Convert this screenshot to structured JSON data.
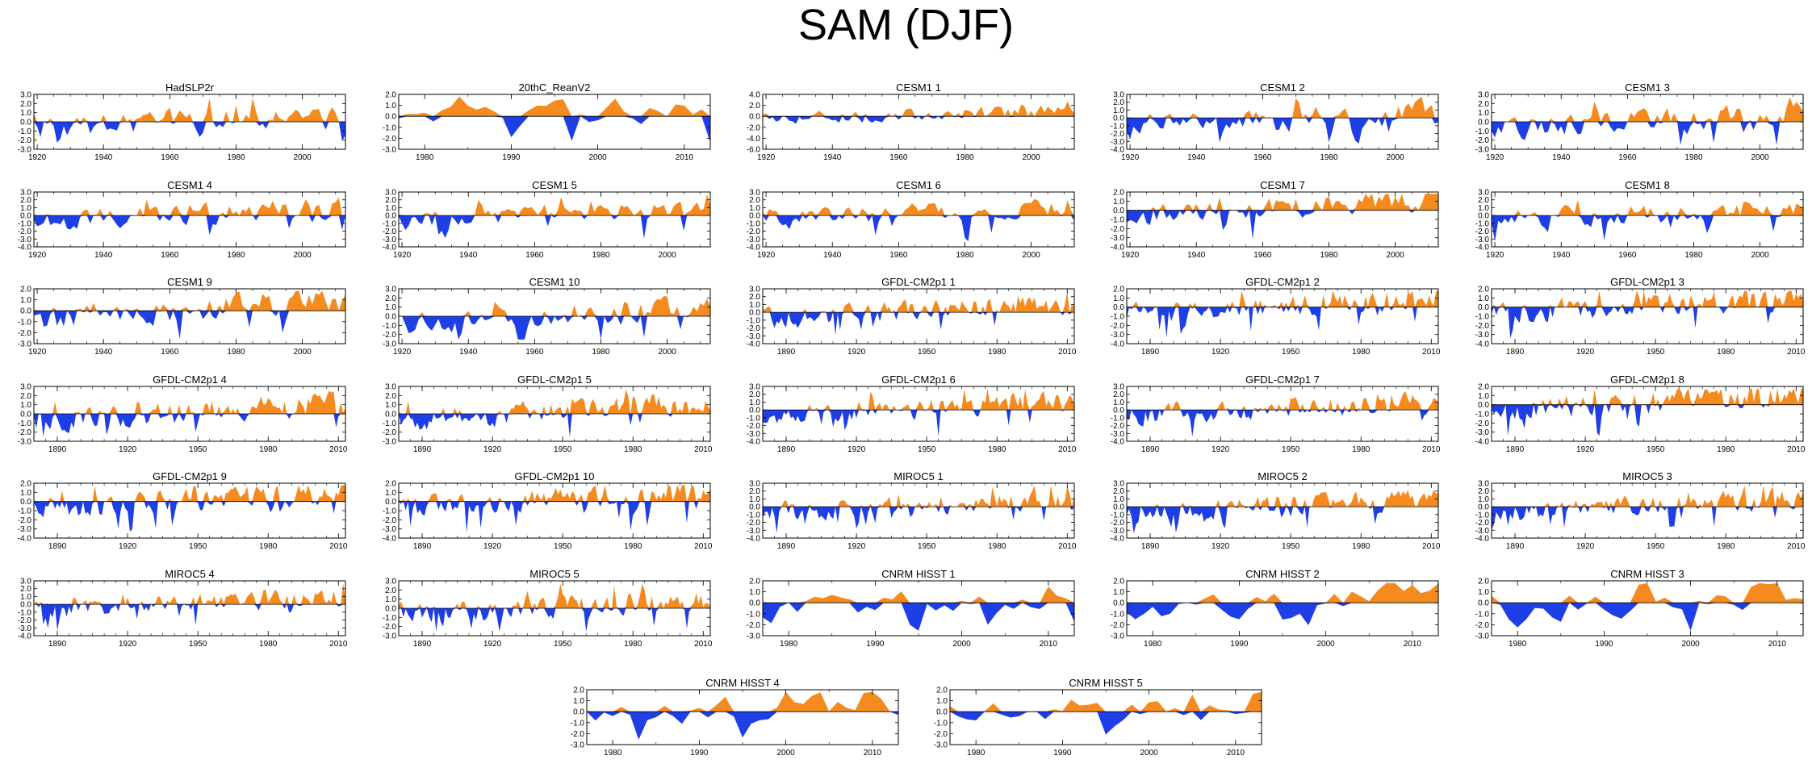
{
  "title": "SAM (DJF)",
  "colors": {
    "positive": "#f58a1f",
    "negative": "#1f3fe6",
    "axis": "#000000"
  },
  "chart_data": [
    {
      "type": "area",
      "title": "HadSLP2r",
      "x_range": [
        1919,
        2013
      ],
      "ylim": [
        -3.0,
        3.0
      ],
      "y_ticks": [
        "3.0",
        "2.0",
        "1.0",
        "0.0",
        "-1.0",
        "-2.0",
        "-3.0"
      ],
      "x_ticks": [
        1920,
        1940,
        1960,
        1980,
        2000
      ],
      "seed": 1,
      "bias": 0.0,
      "trend": 0.0
    },
    {
      "type": "area",
      "title": "20thC_ReanV2",
      "x_range": [
        1977,
        2013
      ],
      "ylim": [
        -3.0,
        2.0
      ],
      "y_ticks": [
        "2.0",
        "1.0",
        "0.0",
        "-1.0",
        "-2.0",
        "-3.0"
      ],
      "x_ticks": [
        1980,
        1990,
        2000,
        2010
      ],
      "seed": 2,
      "bias": 0.0,
      "trend": 0.0
    },
    {
      "type": "area",
      "title": "CESM1 1",
      "x_range": [
        1919,
        2013
      ],
      "ylim": [
        -6.0,
        4.0
      ],
      "y_ticks": [
        "4.0",
        "2.0",
        "0.0",
        "-2.0",
        "-4.0",
        "-6.0"
      ],
      "x_ticks": [
        1920,
        1940,
        1960,
        1980,
        2000
      ],
      "seed": 3,
      "bias": 0.0,
      "trend": 0.0
    },
    {
      "type": "area",
      "title": "CESM1 2",
      "x_range": [
        1919,
        2013
      ],
      "ylim": [
        -4.0,
        3.0
      ],
      "y_ticks": [
        "3.0",
        "2.0",
        "1.0",
        "0.0",
        "-1.0",
        "-2.0",
        "-3.0",
        "-4.0"
      ],
      "x_ticks": [
        1920,
        1940,
        1960,
        1980,
        2000
      ],
      "seed": 4,
      "bias": 0.0,
      "trend": 0.0
    },
    {
      "type": "area",
      "title": "CESM1 3",
      "x_range": [
        1919,
        2013
      ],
      "ylim": [
        -3.0,
        3.0
      ],
      "y_ticks": [
        "3.0",
        "2.0",
        "1.0",
        "0.0",
        "-1.0",
        "-2.0",
        "-3.0"
      ],
      "x_ticks": [
        1920,
        1940,
        1960,
        1980,
        2000
      ],
      "seed": 5,
      "bias": 0.0,
      "trend": 0.0
    },
    {
      "type": "area",
      "title": "CESM1 4",
      "x_range": [
        1919,
        2013
      ],
      "ylim": [
        -4.0,
        3.0
      ],
      "y_ticks": [
        "3.0",
        "2.0",
        "1.0",
        "0.0",
        "-1.0",
        "-2.0",
        "-3.0",
        "-4.0"
      ],
      "x_ticks": [
        1920,
        1940,
        1960,
        1980,
        2000
      ],
      "seed": 6,
      "bias": 0.0,
      "trend": 0.0
    },
    {
      "type": "area",
      "title": "CESM1 5",
      "x_range": [
        1919,
        2013
      ],
      "ylim": [
        -4.0,
        3.0
      ],
      "y_ticks": [
        "3.0",
        "2.0",
        "1.0",
        "0.0",
        "-1.0",
        "-2.0",
        "-3.0",
        "-4.0"
      ],
      "x_ticks": [
        1920,
        1940,
        1960,
        1980,
        2000
      ],
      "seed": 7,
      "bias": 0.0,
      "trend": 0.0
    },
    {
      "type": "area",
      "title": "CESM1 6",
      "x_range": [
        1919,
        2013
      ],
      "ylim": [
        -4.0,
        3.0
      ],
      "y_ticks": [
        "3.0",
        "2.0",
        "1.0",
        "0.0",
        "-1.0",
        "-2.0",
        "-3.0",
        "-4.0"
      ],
      "x_ticks": [
        1920,
        1940,
        1960,
        1980,
        2000
      ],
      "seed": 8,
      "bias": 0.0,
      "trend": 0.0
    },
    {
      "type": "area",
      "title": "CESM1 7",
      "x_range": [
        1919,
        2013
      ],
      "ylim": [
        -4.0,
        2.0
      ],
      "y_ticks": [
        "2.0",
        "1.0",
        "0.0",
        "-1.0",
        "-2.0",
        "-3.0",
        "-4.0"
      ],
      "x_ticks": [
        1920,
        1940,
        1960,
        1980,
        2000
      ],
      "seed": 9,
      "bias": 0.0,
      "trend": 0.0
    },
    {
      "type": "area",
      "title": "CESM1 8",
      "x_range": [
        1919,
        2013
      ],
      "ylim": [
        -4.0,
        3.0
      ],
      "y_ticks": [
        "3.0",
        "2.0",
        "1.0",
        "0.0",
        "-1.0",
        "-2.0",
        "-3.0",
        "-4.0"
      ],
      "x_ticks": [
        1920,
        1940,
        1960,
        1980,
        2000
      ],
      "seed": 10,
      "bias": 0.0,
      "trend": 0.0
    },
    {
      "type": "area",
      "title": "CESM1 9",
      "x_range": [
        1919,
        2013
      ],
      "ylim": [
        -3.0,
        2.0
      ],
      "y_ticks": [
        "2.0",
        "1.0",
        "0.0",
        "-1.0",
        "-2.0",
        "-3.0"
      ],
      "x_ticks": [
        1920,
        1940,
        1960,
        1980,
        2000
      ],
      "seed": 11,
      "bias": 0.0,
      "trend": 0.0
    },
    {
      "type": "area",
      "title": "CESM1 10",
      "x_range": [
        1919,
        2013
      ],
      "ylim": [
        -3.0,
        3.0
      ],
      "y_ticks": [
        "3.0",
        "2.0",
        "1.0",
        "0.0",
        "-1.0",
        "-2.0",
        "-3.0"
      ],
      "x_ticks": [
        1920,
        1940,
        1960,
        1980,
        2000
      ],
      "seed": 12,
      "bias": 0.0,
      "trend": 0.0
    },
    {
      "type": "area",
      "title": "GFDL-CM2p1 1",
      "x_range": [
        1880,
        2013
      ],
      "ylim": [
        -4.0,
        3.0
      ],
      "y_ticks": [
        "3.0",
        "2.0",
        "1.0",
        "0.0",
        "-1.0",
        "-2.0",
        "-3.0",
        "-4.0"
      ],
      "x_ticks": [
        1890,
        1920,
        1950,
        1980,
        2010
      ],
      "seed": 13,
      "bias": 0.0,
      "trend": 0.0
    },
    {
      "type": "area",
      "title": "GFDL-CM2p1 2",
      "x_range": [
        1880,
        2013
      ],
      "ylim": [
        -4.0,
        2.0
      ],
      "y_ticks": [
        "2.0",
        "1.0",
        "0.0",
        "-1.0",
        "-2.0",
        "-3.0",
        "-4.0"
      ],
      "x_ticks": [
        1890,
        1920,
        1950,
        1980,
        2010
      ],
      "seed": 14,
      "bias": 0.0,
      "trend": 0.0
    },
    {
      "type": "area",
      "title": "GFDL-CM2p1 3",
      "x_range": [
        1880,
        2013
      ],
      "ylim": [
        -4.0,
        2.0
      ],
      "y_ticks": [
        "2.0",
        "1.0",
        "0.0",
        "-1.0",
        "-2.0",
        "-3.0",
        "-4.0"
      ],
      "x_ticks": [
        1890,
        1920,
        1950,
        1980,
        2010
      ],
      "seed": 15,
      "bias": 0.0,
      "trend": 0.0
    },
    {
      "type": "area",
      "title": "GFDL-CM2p1 4",
      "x_range": [
        1880,
        2013
      ],
      "ylim": [
        -3.0,
        3.0
      ],
      "y_ticks": [
        "3.0",
        "2.0",
        "1.0",
        "0.0",
        "-1.0",
        "-2.0",
        "-3.0"
      ],
      "x_ticks": [
        1890,
        1920,
        1950,
        1980,
        2010
      ],
      "seed": 16,
      "bias": 0.0,
      "trend": 0.0
    },
    {
      "type": "area",
      "title": "GFDL-CM2p1 5",
      "x_range": [
        1880,
        2013
      ],
      "ylim": [
        -3.0,
        3.0
      ],
      "y_ticks": [
        "3.0",
        "2.0",
        "1.0",
        "0.0",
        "-1.0",
        "-2.0",
        "-3.0"
      ],
      "x_ticks": [
        1890,
        1920,
        1950,
        1980,
        2010
      ],
      "seed": 17,
      "bias": 0.0,
      "trend": 0.0
    },
    {
      "type": "area",
      "title": "GFDL-CM2p1 6",
      "x_range": [
        1880,
        2013
      ],
      "ylim": [
        -4.0,
        3.0
      ],
      "y_ticks": [
        "3.0",
        "2.0",
        "1.0",
        "0.0",
        "-1.0",
        "-2.0",
        "-3.0",
        "-4.0"
      ],
      "x_ticks": [
        1890,
        1920,
        1950,
        1980,
        2010
      ],
      "seed": 18,
      "bias": 0.0,
      "trend": 0.0
    },
    {
      "type": "area",
      "title": "GFDL-CM2p1 7",
      "x_range": [
        1880,
        2013
      ],
      "ylim": [
        -4.0,
        3.0
      ],
      "y_ticks": [
        "3.0",
        "2.0",
        "1.0",
        "0.0",
        "-1.0",
        "-2.0",
        "-3.0",
        "-4.0"
      ],
      "x_ticks": [
        1890,
        1920,
        1950,
        1980,
        2010
      ],
      "seed": 19,
      "bias": 0.0,
      "trend": 0.0
    },
    {
      "type": "area",
      "title": "GFDL-CM2p1 8",
      "x_range": [
        1880,
        2013
      ],
      "ylim": [
        -4.0,
        2.0
      ],
      "y_ticks": [
        "2.0",
        "1.0",
        "0.0",
        "-1.0",
        "-2.0",
        "-3.0",
        "-4.0"
      ],
      "x_ticks": [
        1890,
        1920,
        1950,
        1980,
        2010
      ],
      "seed": 20,
      "bias": 0.0,
      "trend": 0.0
    },
    {
      "type": "area",
      "title": "GFDL-CM2p1 9",
      "x_range": [
        1880,
        2013
      ],
      "ylim": [
        -4.0,
        2.0
      ],
      "y_ticks": [
        "2.0",
        "1.0",
        "0.0",
        "-1.0",
        "-2.0",
        "-3.0",
        "-4.0"
      ],
      "x_ticks": [
        1890,
        1920,
        1950,
        1980,
        2010
      ],
      "seed": 21,
      "bias": 0.0,
      "trend": 0.0
    },
    {
      "type": "area",
      "title": "GFDL-CM2p1 10",
      "x_range": [
        1880,
        2013
      ],
      "ylim": [
        -4.0,
        2.0
      ],
      "y_ticks": [
        "2.0",
        "1.0",
        "0.0",
        "-1.0",
        "-2.0",
        "-3.0",
        "-4.0"
      ],
      "x_ticks": [
        1890,
        1920,
        1950,
        1980,
        2010
      ],
      "seed": 22,
      "bias": 0.0,
      "trend": 0.0
    },
    {
      "type": "area",
      "title": "MIROC5 1",
      "x_range": [
        1880,
        2013
      ],
      "ylim": [
        -4.0,
        3.0
      ],
      "y_ticks": [
        "3.0",
        "2.0",
        "1.0",
        "0.0",
        "-1.0",
        "-2.0",
        "-3.0",
        "-4.0"
      ],
      "x_ticks": [
        1890,
        1920,
        1950,
        1980,
        2010
      ],
      "seed": 23,
      "bias": 0.0,
      "trend": 0.0
    },
    {
      "type": "area",
      "title": "MIROC5 2",
      "x_range": [
        1880,
        2013
      ],
      "ylim": [
        -4.0,
        3.0
      ],
      "y_ticks": [
        "3.0",
        "2.0",
        "1.0",
        "0.0",
        "-1.0",
        "-2.0",
        "-3.0",
        "-4.0"
      ],
      "x_ticks": [
        1890,
        1920,
        1950,
        1980,
        2010
      ],
      "seed": 24,
      "bias": 0.0,
      "trend": 0.0
    },
    {
      "type": "area",
      "title": "MIROC5 3",
      "x_range": [
        1880,
        2013
      ],
      "ylim": [
        -4.0,
        3.0
      ],
      "y_ticks": [
        "3.0",
        "2.0",
        "1.0",
        "0.0",
        "-1.0",
        "-2.0",
        "-3.0",
        "-4.0"
      ],
      "x_ticks": [
        1890,
        1920,
        1950,
        1980,
        2010
      ],
      "seed": 25,
      "bias": 0.0,
      "trend": 0.0
    },
    {
      "type": "area",
      "title": "MIROC5 4",
      "x_range": [
        1880,
        2013
      ],
      "ylim": [
        -4.0,
        3.0
      ],
      "y_ticks": [
        "3.0",
        "2.0",
        "1.0",
        "0.0",
        "-1.0",
        "-2.0",
        "-3.0",
        "-4.0"
      ],
      "x_ticks": [
        1890,
        1920,
        1950,
        1980,
        2010
      ],
      "seed": 26,
      "bias": 0.0,
      "trend": 0.0
    },
    {
      "type": "area",
      "title": "MIROC5 5",
      "x_range": [
        1880,
        2013
      ],
      "ylim": [
        -3.0,
        3.0
      ],
      "y_ticks": [
        "3.0",
        "2.0",
        "1.0",
        "0.0",
        "-1.0",
        "-2.0",
        "-3.0"
      ],
      "x_ticks": [
        1890,
        1920,
        1950,
        1980,
        2010
      ],
      "seed": 27,
      "bias": 0.0,
      "trend": 0.0
    },
    {
      "type": "area",
      "title": "CNRM HISST 1",
      "x_range": [
        1977,
        2013
      ],
      "ylim": [
        -3.0,
        2.0
      ],
      "y_ticks": [
        "2.0",
        "1.0",
        "0.0",
        "-1.0",
        "-2.0",
        "-3.0"
      ],
      "x_ticks": [
        1980,
        1990,
        2000,
        2010
      ],
      "seed": 28,
      "bias": 0.0,
      "trend": 0.0
    },
    {
      "type": "area",
      "title": "CNRM HISST 2",
      "x_range": [
        1977,
        2013
      ],
      "ylim": [
        -3.0,
        2.0
      ],
      "y_ticks": [
        "2.0",
        "1.0",
        "0.0",
        "-1.0",
        "-2.0",
        "-3.0"
      ],
      "x_ticks": [
        1980,
        1990,
        2000,
        2010
      ],
      "seed": 29,
      "bias": 0.0,
      "trend": 0.0
    },
    {
      "type": "area",
      "title": "CNRM HISST 3",
      "x_range": [
        1977,
        2013
      ],
      "ylim": [
        -3.0,
        2.0
      ],
      "y_ticks": [
        "2.0",
        "1.0",
        "0.0",
        "-1.0",
        "-2.0",
        "-3.0"
      ],
      "x_ticks": [
        1980,
        1990,
        2000,
        2010
      ],
      "seed": 30,
      "bias": 0.0,
      "trend": 0.0
    },
    {
      "type": "area",
      "title": "CNRM HISST 4",
      "x_range": [
        1977,
        2013
      ],
      "ylim": [
        -3.0,
        2.0
      ],
      "y_ticks": [
        "2.0",
        "1.0",
        "0.0",
        "-1.0",
        "-2.0",
        "-3.0"
      ],
      "x_ticks": [
        1980,
        1990,
        2000,
        2010
      ],
      "seed": 31,
      "bias": 0.0,
      "trend": 0.0
    },
    {
      "type": "area",
      "title": "CNRM HISST 5",
      "x_range": [
        1977,
        2013
      ],
      "ylim": [
        -3.0,
        2.0
      ],
      "y_ticks": [
        "2.0",
        "1.0",
        "0.0",
        "-1.0",
        "-2.0",
        "-3.0"
      ],
      "x_ticks": [
        1980,
        1990,
        2000,
        2010
      ],
      "seed": 32,
      "bias": 0.0,
      "trend": 0.0
    }
  ]
}
